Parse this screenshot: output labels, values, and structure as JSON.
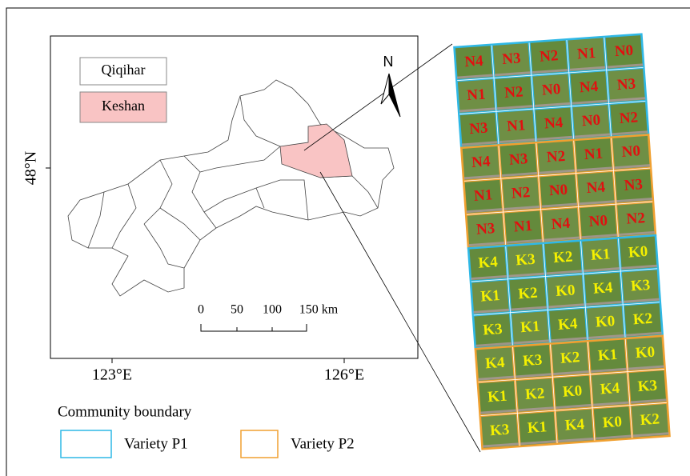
{
  "map": {
    "legend": [
      "Qiqihar",
      "Keshan"
    ],
    "north": "N",
    "lat_label": "48°N",
    "lon_labels": [
      "123°E",
      "126°E"
    ],
    "scale_labels": [
      "0",
      "50",
      "100",
      "150 km"
    ]
  },
  "boundary_legend": {
    "title": "Community boundary",
    "items": [
      "Variety P1",
      "Variety P2"
    ]
  },
  "plots": {
    "rows": [
      [
        "N4",
        "N3",
        "N2",
        "N1",
        "N0"
      ],
      [
        "N1",
        "N2",
        "N0",
        "N4",
        "N3"
      ],
      [
        "N3",
        "N1",
        "N4",
        "N0",
        "N2"
      ],
      [
        "N4",
        "N3",
        "N2",
        "N1",
        "N0"
      ],
      [
        "N1",
        "N2",
        "N0",
        "N4",
        "N3"
      ],
      [
        "N3",
        "N1",
        "N4",
        "N0",
        "N2"
      ],
      [
        "K4",
        "K3",
        "K2",
        "K1",
        "K0"
      ],
      [
        "K1",
        "K2",
        "K0",
        "K4",
        "K3"
      ],
      [
        "K3",
        "K1",
        "K4",
        "K0",
        "K2"
      ],
      [
        "K4",
        "K3",
        "K2",
        "K1",
        "K0"
      ],
      [
        "K1",
        "K2",
        "K0",
        "K4",
        "K3"
      ],
      [
        "K3",
        "K1",
        "K4",
        "K0",
        "K2"
      ]
    ]
  }
}
